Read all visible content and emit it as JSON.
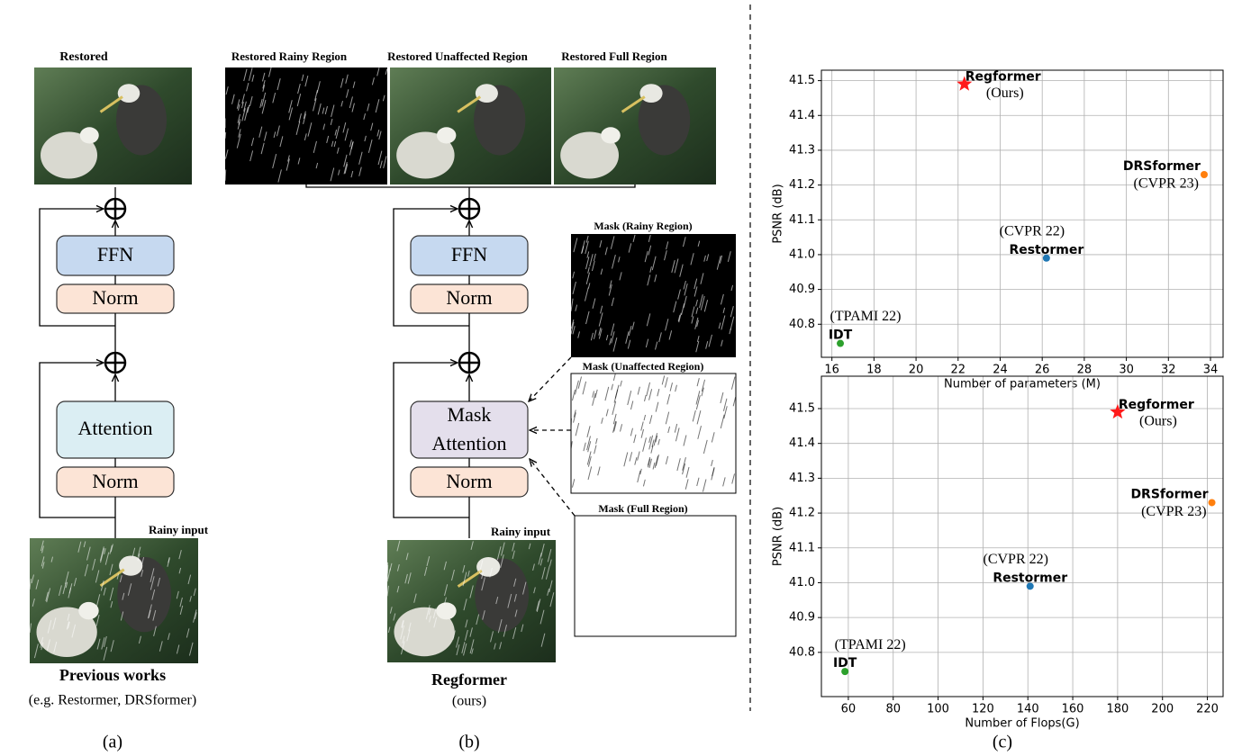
{
  "panel_a": {
    "restored_label": "Restored",
    "ffn": "FFN",
    "norm_top": "Norm",
    "attention": "Attention",
    "norm_bottom": "Norm",
    "input_label": "Rainy input",
    "caption_title": "Previous works",
    "caption_sub": "(e.g. Restormer, DRSformer)",
    "panel_label": "(a)"
  },
  "panel_b": {
    "restored_rainy_label": "Restored Rainy Region",
    "restored_unaffected_label": "Restored Unaffected Region",
    "restored_full_label": "Restored Full Region",
    "ffn": "FFN",
    "norm_top": "Norm",
    "mask_attention_line1": "Mask",
    "mask_attention_line2": "Attention",
    "norm_bottom": "Norm",
    "input_label": "Rainy input",
    "mask_rainy_label": "Mask (Rainy Region)",
    "mask_unaffected_label": "Mask (Unaffected Region)",
    "mask_full_label": "Mask (Full Region)",
    "caption_title": "Regformer",
    "caption_sub": "(ours)",
    "panel_label": "(b)"
  },
  "panel_c": {
    "panel_label": "(c)"
  },
  "chart_data": [
    {
      "type": "scatter",
      "x_label": "Number of parameters (M)",
      "y_label": "PSNR (dB)",
      "grid": true,
      "xlim": [
        15.5,
        34.6
      ],
      "xticks": [
        16,
        18,
        20,
        22,
        24,
        26,
        28,
        30,
        32,
        34
      ],
      "ylim": [
        40.705,
        41.53
      ],
      "yticks": [
        40.8,
        40.9,
        {
          "value": 41,
          "label": "41.0"
        },
        41.1,
        41.2,
        41.3,
        41.4,
        41.5
      ],
      "series": [
        {
          "name": "Regformer",
          "annotation": "(Ours)",
          "color": "#ff1a1a",
          "marker": "star",
          "x": [
            22.3
          ],
          "values": [
            41.49
          ]
        },
        {
          "name": "DRSformer",
          "annotation": "(CVPR 23)",
          "color": "#ff7f0e",
          "marker": "circle",
          "x": [
            33.7
          ],
          "values": [
            41.23
          ]
        },
        {
          "name": "Restormer",
          "annotation": "(CVPR 22)",
          "color": "#1f77b4",
          "marker": "circle",
          "x": [
            26.2
          ],
          "values": [
            40.99
          ]
        },
        {
          "name": "IDT",
          "annotation": "(TPAMI 22)",
          "color": "#2ca02c",
          "marker": "circle",
          "x": [
            16.4
          ],
          "values": [
            40.745
          ]
        }
      ]
    },
    {
      "type": "scatter",
      "x_label": "Number of Flops(G)",
      "y_label": "PSNR (dB)",
      "grid": true,
      "xlim": [
        48,
        227
      ],
      "xticks": [
        60,
        80,
        100,
        120,
        140,
        160,
        180,
        200,
        220
      ],
      "ylim": [
        40.673,
        41.593
      ],
      "yticks": [
        40.8,
        40.9,
        {
          "value": 41,
          "label": "41.0"
        },
        41.1,
        41.2,
        41.3,
        41.4,
        41.5
      ],
      "series": [
        {
          "name": "Regformer",
          "annotation": "(Ours)",
          "color": "#ff1a1a",
          "marker": "star",
          "x": [
            180
          ],
          "values": [
            41.49
          ]
        },
        {
          "name": "DRSformer",
          "annotation": "(CVPR 23)",
          "color": "#ff7f0e",
          "marker": "circle",
          "x": [
            222
          ],
          "values": [
            41.23
          ]
        },
        {
          "name": "Restormer",
          "annotation": "(CVPR 22)",
          "color": "#1f77b4",
          "marker": "circle",
          "x": [
            141
          ],
          "values": [
            40.99
          ]
        },
        {
          "name": "IDT",
          "annotation": "(TPAMI 22)",
          "color": "#2ca02c",
          "marker": "circle",
          "x": [
            58.5
          ],
          "values": [
            40.745
          ]
        }
      ]
    }
  ]
}
